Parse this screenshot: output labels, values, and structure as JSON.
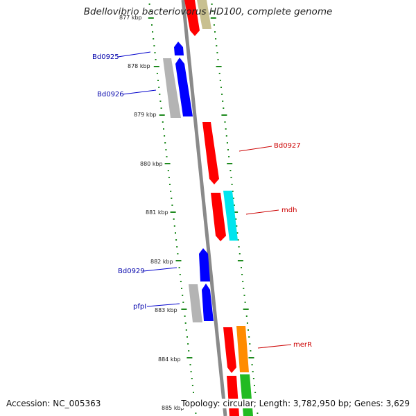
{
  "title": "Bdellovibrio bacteriovorus HD100, complete genome",
  "footer": {
    "accession": "Accession: NC_005363",
    "summary": "Topology: circular; Length: 3,782,950 bp; Genes: 3,629"
  },
  "colors": {
    "backbone": "#8a8a8a",
    "ticks": "#1e8a1e",
    "forward_label": "#0000aa",
    "reverse_label": "#cc0000",
    "gene_red": "#ff0000",
    "gene_blue": "#0000ff",
    "gene_cyan": "#00e5ee",
    "gene_gray": "#b4b4b4",
    "gene_olive": "#c8c090",
    "gene_orange": "#ff8c00",
    "gene_green": "#22bb22"
  },
  "scale": {
    "unit": "kbp",
    "labels": [
      "877 kbp",
      "878 kbp",
      "879 kbp",
      "880 kbp",
      "881 kbp",
      "882 kbp",
      "883 kbp",
      "884 kbp",
      "885 kbp"
    ]
  },
  "gene_labels": {
    "bd0925": "Bd0925",
    "bd0926": "Bd0926",
    "bd0927": "Bd0927",
    "mdh": "mdh",
    "bd0929": "Bd0929",
    "pfpi": "pfpI",
    "merr": "merR"
  }
}
